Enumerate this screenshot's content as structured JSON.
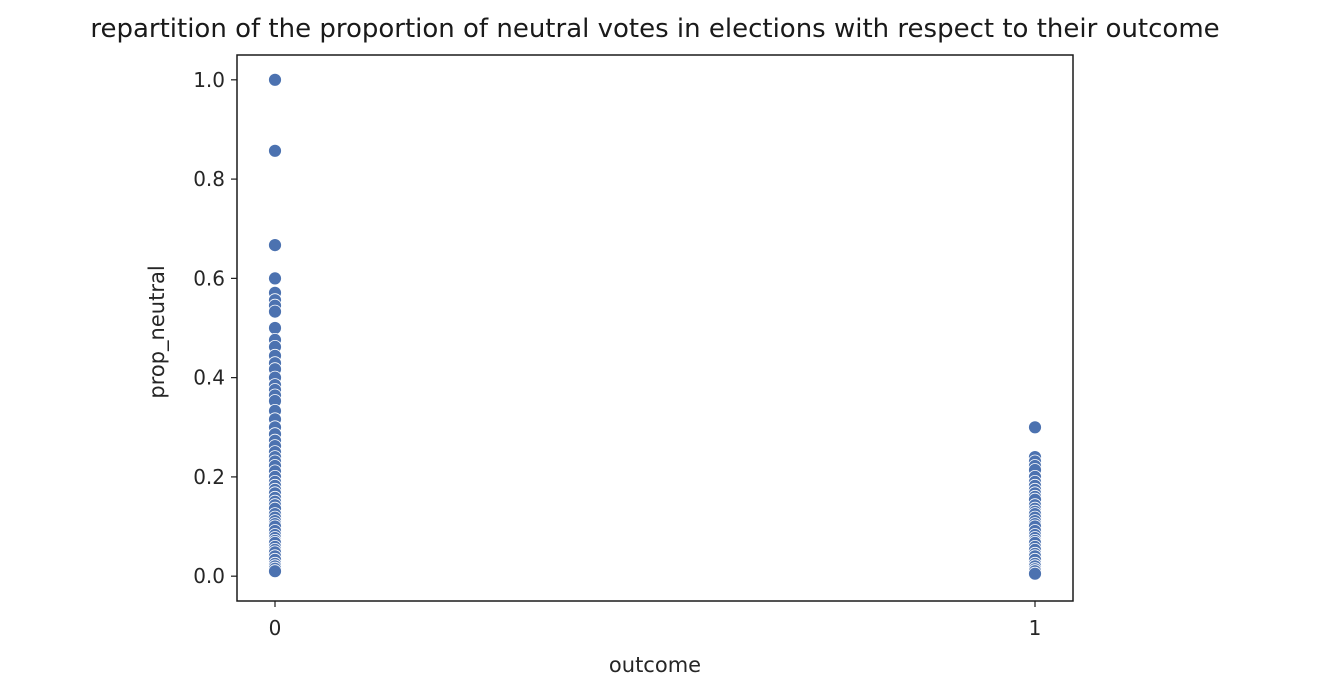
{
  "chart_data": {
    "type": "scatter",
    "title": "repartition of the proportion of neutral votes in elections with respect to their outcome",
    "xlabel": "outcome",
    "ylabel": "prop_neutral",
    "x_ticks": [
      "0",
      "1"
    ],
    "y_ticks": [
      "0.0",
      "0.2",
      "0.4",
      "0.6",
      "0.8",
      "1.0"
    ],
    "xlim": [
      -0.05,
      1.05
    ],
    "ylim": [
      -0.05,
      1.05
    ],
    "grid": false,
    "marker_color": "#4c72b0",
    "marker_edge_color": "#ffffff",
    "points": [
      [
        0,
        1.0
      ],
      [
        0,
        0.857
      ],
      [
        0,
        0.667
      ],
      [
        0,
        0.6
      ],
      [
        0,
        0.571
      ],
      [
        0,
        0.556
      ],
      [
        0,
        0.545
      ],
      [
        0,
        0.533
      ],
      [
        0,
        0.5
      ],
      [
        0,
        0.476
      ],
      [
        0,
        0.462
      ],
      [
        0,
        0.444
      ],
      [
        0,
        0.429
      ],
      [
        0,
        0.417
      ],
      [
        0,
        0.4
      ],
      [
        0,
        0.385
      ],
      [
        0,
        0.375
      ],
      [
        0,
        0.364
      ],
      [
        0,
        0.353
      ],
      [
        0,
        0.333
      ],
      [
        0,
        0.316
      ],
      [
        0,
        0.3
      ],
      [
        0,
        0.286
      ],
      [
        0,
        0.273
      ],
      [
        0,
        0.262
      ],
      [
        0,
        0.25
      ],
      [
        0,
        0.24
      ],
      [
        0,
        0.231
      ],
      [
        0,
        0.222
      ],
      [
        0,
        0.211
      ],
      [
        0,
        0.2
      ],
      [
        0,
        0.19
      ],
      [
        0,
        0.182
      ],
      [
        0,
        0.174
      ],
      [
        0,
        0.167
      ],
      [
        0,
        0.158
      ],
      [
        0,
        0.15
      ],
      [
        0,
        0.143
      ],
      [
        0,
        0.136
      ],
      [
        0,
        0.125
      ],
      [
        0,
        0.118
      ],
      [
        0,
        0.111
      ],
      [
        0,
        0.105
      ],
      [
        0,
        0.1
      ],
      [
        0,
        0.091
      ],
      [
        0,
        0.083
      ],
      [
        0,
        0.077
      ],
      [
        0,
        0.071
      ],
      [
        0,
        0.067
      ],
      [
        0,
        0.059
      ],
      [
        0,
        0.053
      ],
      [
        0,
        0.048
      ],
      [
        0,
        0.04
      ],
      [
        0,
        0.033
      ],
      [
        0,
        0.025
      ],
      [
        0,
        0.02
      ],
      [
        0,
        0.015
      ],
      [
        0,
        0.01
      ],
      [
        1,
        0.3
      ],
      [
        1,
        0.24
      ],
      [
        1,
        0.231
      ],
      [
        1,
        0.222
      ],
      [
        1,
        0.214
      ],
      [
        1,
        0.2
      ],
      [
        1,
        0.19
      ],
      [
        1,
        0.182
      ],
      [
        1,
        0.174
      ],
      [
        1,
        0.167
      ],
      [
        1,
        0.16
      ],
      [
        1,
        0.154
      ],
      [
        1,
        0.143
      ],
      [
        1,
        0.136
      ],
      [
        1,
        0.13
      ],
      [
        1,
        0.125
      ],
      [
        1,
        0.118
      ],
      [
        1,
        0.111
      ],
      [
        1,
        0.105
      ],
      [
        1,
        0.1
      ],
      [
        1,
        0.091
      ],
      [
        1,
        0.083
      ],
      [
        1,
        0.077
      ],
      [
        1,
        0.071
      ],
      [
        1,
        0.067
      ],
      [
        1,
        0.059
      ],
      [
        1,
        0.053
      ],
      [
        1,
        0.045
      ],
      [
        1,
        0.04
      ],
      [
        1,
        0.033
      ],
      [
        1,
        0.025
      ],
      [
        1,
        0.02
      ],
      [
        1,
        0.014
      ],
      [
        1,
        0.01
      ],
      [
        1,
        0.005
      ]
    ]
  }
}
